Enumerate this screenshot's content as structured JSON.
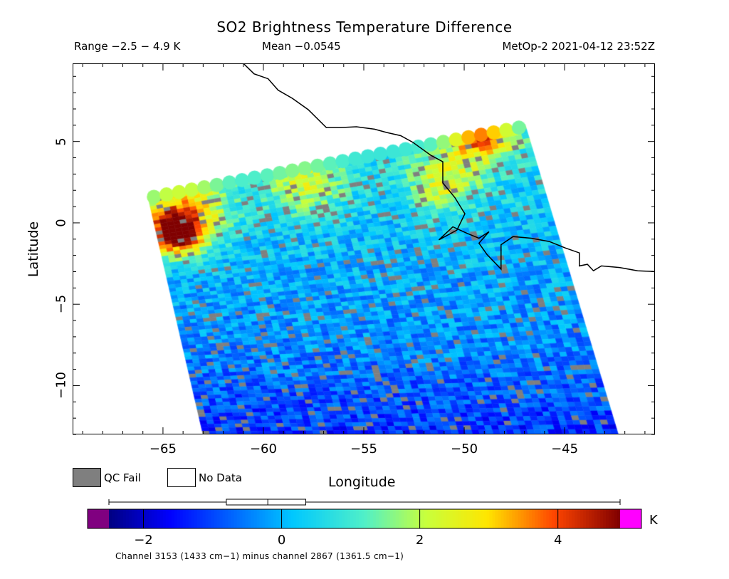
{
  "title": "SO2 Brightness Temperature Difference",
  "header": {
    "range": "Range −2.5 − 4.9 K",
    "mean": "Mean −0.0545",
    "satellite_time": "MetOp-2 2021-04-12 23:52Z"
  },
  "axes": {
    "x_label": "Longitude",
    "y_label": "Latitude",
    "x_range": [
      -69.5,
      -40.5
    ],
    "y_range": [
      -13,
      9.8
    ],
    "x_ticks": [
      {
        "value": -65,
        "label": "−65"
      },
      {
        "value": -60,
        "label": "−60"
      },
      {
        "value": -55,
        "label": "−55"
      },
      {
        "value": -50,
        "label": "−50"
      },
      {
        "value": -45,
        "label": "−45"
      }
    ],
    "y_ticks": [
      {
        "value": 5,
        "label": "5"
      },
      {
        "value": 0,
        "label": "0"
      },
      {
        "value": -5,
        "label": "−5"
      },
      {
        "value": -10,
        "label": "−10"
      }
    ]
  },
  "legend": {
    "qc_fail": {
      "label": "QC Fail",
      "color": "#7f7f7f"
    },
    "no_data": {
      "label": "No Data",
      "color": "#ffffff"
    }
  },
  "colorbar": {
    "unit": "K",
    "range": [
      -2.5,
      4.9
    ],
    "underflow_color": "#800080",
    "overflow_color": "#ff00ff",
    "ticks": [
      {
        "value": -2,
        "label": "−2"
      },
      {
        "value": 0,
        "label": "0"
      },
      {
        "value": 2,
        "label": "2"
      },
      {
        "value": 4,
        "label": "4"
      }
    ],
    "boxplot": {
      "min": -2.5,
      "q1": -0.8,
      "median": -0.2,
      "q3": 0.35,
      "max": 4.9
    },
    "footnote": "Channel 3153 (1433 cm−1) minus channel 2867 (1361.5 cm−1)"
  },
  "map": {
    "swath_corners": {
      "top_left": [
        -65.8,
        1.7
      ],
      "top_right": [
        -47.0,
        6.1
      ],
      "bottom_right": [
        -42.3,
        -13.2
      ],
      "bottom_left": [
        -63.0,
        -13.2
      ]
    },
    "background_value": -0.3,
    "hotspots": [
      {
        "lon": -64.4,
        "lat": -0.6,
        "value": 4.8,
        "spread": 1.4
      },
      {
        "lon": -63.8,
        "lat": 1.0,
        "value": 2.4,
        "spread": 2.2
      },
      {
        "lon": -49.2,
        "lat": 5.4,
        "value": 3.6,
        "spread": 1.6
      },
      {
        "lon": -51.0,
        "lat": 2.5,
        "value": 2.0,
        "spread": 1.8
      },
      {
        "lon": -58.0,
        "lat": 2.5,
        "value": 1.8,
        "spread": 2.0
      }
    ],
    "coastline": [
      [
        -61.0,
        9.8
      ],
      [
        -60.5,
        9.2
      ],
      [
        -59.8,
        8.9
      ],
      [
        -59.3,
        8.2
      ],
      [
        -58.6,
        7.7
      ],
      [
        -57.8,
        7.0
      ],
      [
        -56.9,
        5.9
      ],
      [
        -56.2,
        5.9
      ],
      [
        -55.4,
        5.95
      ],
      [
        -54.5,
        5.8
      ],
      [
        -53.9,
        5.6
      ],
      [
        -53.2,
        5.4
      ],
      [
        -52.6,
        5.0
      ],
      [
        -51.7,
        4.2
      ],
      [
        -51.1,
        3.8
      ],
      [
        -51.1,
        2.5
      ],
      [
        -50.5,
        1.6
      ],
      [
        -50.0,
        0.6
      ],
      [
        -50.4,
        -0.4
      ],
      [
        -51.3,
        -1.0
      ],
      [
        -50.6,
        -0.2
      ],
      [
        -49.9,
        -0.6
      ],
      [
        -49.3,
        -0.9
      ],
      [
        -48.8,
        -0.5
      ],
      [
        -49.3,
        -1.2
      ],
      [
        -48.9,
        -1.9
      ],
      [
        -48.2,
        -2.8
      ],
      [
        -48.2,
        -1.3
      ],
      [
        -47.6,
        -0.8
      ],
      [
        -46.7,
        -0.9
      ],
      [
        -45.8,
        -1.1
      ],
      [
        -45.0,
        -1.5
      ],
      [
        -44.3,
        -1.8
      ],
      [
        -44.3,
        -2.6
      ],
      [
        -43.9,
        -2.5
      ],
      [
        -43.6,
        -2.9
      ],
      [
        -43.2,
        -2.6
      ],
      [
        -42.3,
        -2.7
      ],
      [
        -41.4,
        -2.9
      ],
      [
        -40.5,
        -2.95
      ]
    ]
  }
}
